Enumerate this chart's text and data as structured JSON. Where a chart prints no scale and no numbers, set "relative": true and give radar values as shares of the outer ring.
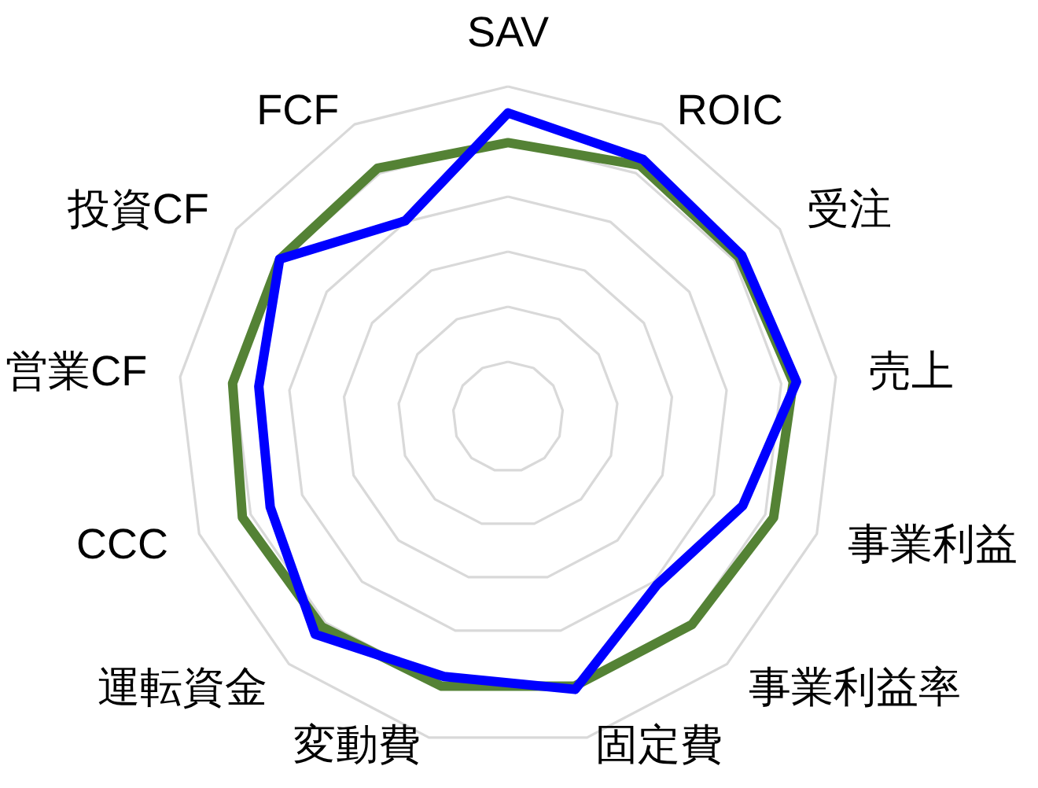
{
  "chart_data": {
    "type": "radar",
    "relative": true,
    "grid": true,
    "categories": [
      "SAV",
      "ROIC",
      "受注",
      "売上",
      "事業利益",
      "事業利益率",
      "固定費",
      "変動費",
      "運転資金",
      "CCC",
      "営業CF",
      "投資CF",
      "FCF"
    ],
    "series": [
      {
        "color": "#548235",
        "values": [
          0.83,
          0.86,
          0.85,
          0.87,
          0.86,
          0.84,
          0.84,
          0.84,
          0.85,
          0.86,
          0.84,
          0.84,
          0.85
        ]
      },
      {
        "color": "#0000ff",
        "values": [
          0.92,
          0.88,
          0.86,
          0.88,
          0.76,
          0.68,
          0.85,
          0.81,
          0.88,
          0.77,
          0.76,
          0.84,
          0.67
        ]
      }
    ]
  }
}
